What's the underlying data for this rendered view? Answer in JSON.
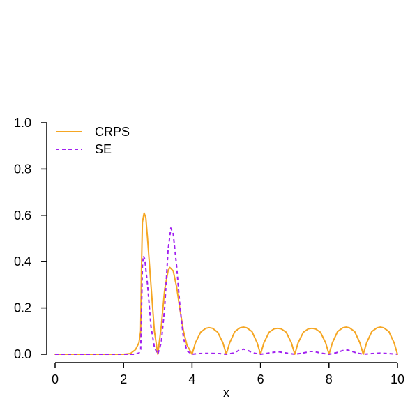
{
  "chart_data": {
    "type": "line",
    "xlabel": "x",
    "ylabel": "",
    "xlim": [
      0,
      10
    ],
    "ylim": [
      0,
      1
    ],
    "x_ticks": [
      0,
      2,
      4,
      6,
      8,
      10
    ],
    "x_tick_labels": [
      "0",
      "2",
      "4",
      "6",
      "8",
      "10"
    ],
    "y_ticks": [
      0,
      0.2,
      0.4,
      0.6,
      0.8,
      1.0
    ],
    "y_tick_labels": [
      "0.0",
      "0.2",
      "0.4",
      "0.6",
      "0.8",
      "1.0"
    ],
    "grid": false,
    "legend_position": "top-left",
    "series": [
      {
        "name": "CRPS",
        "color": "#F5A623",
        "style": "solid",
        "points": [
          [
            0,
            0
          ],
          [
            2,
            0
          ],
          [
            2.2,
            0.003
          ],
          [
            2.35,
            0.02
          ],
          [
            2.45,
            0.05
          ],
          [
            2.5,
            0.1
          ],
          [
            2.52,
            0.35
          ],
          [
            2.55,
            0.57
          ],
          [
            2.6,
            0.61
          ],
          [
            2.65,
            0.59
          ],
          [
            2.7,
            0.5
          ],
          [
            2.8,
            0.3
          ],
          [
            2.9,
            0.1
          ],
          [
            3.0,
            0.0
          ],
          [
            3.1,
            0.12
          ],
          [
            3.2,
            0.28
          ],
          [
            3.3,
            0.36
          ],
          [
            3.35,
            0.375
          ],
          [
            3.45,
            0.36
          ],
          [
            3.55,
            0.29
          ],
          [
            3.65,
            0.19
          ],
          [
            3.75,
            0.1
          ],
          [
            3.85,
            0.04
          ],
          [
            4.0,
            0.0
          ],
          [
            4.1,
            0.05
          ],
          [
            4.25,
            0.095
          ],
          [
            4.4,
            0.112
          ],
          [
            4.5,
            0.115
          ],
          [
            4.6,
            0.112
          ],
          [
            4.75,
            0.095
          ],
          [
            4.9,
            0.05
          ],
          [
            5.0,
            0.0
          ],
          [
            5.1,
            0.05
          ],
          [
            5.25,
            0.098
          ],
          [
            5.4,
            0.114
          ],
          [
            5.5,
            0.117
          ],
          [
            5.6,
            0.114
          ],
          [
            5.75,
            0.098
          ],
          [
            5.9,
            0.05
          ],
          [
            6.0,
            0.0
          ],
          [
            6.1,
            0.05
          ],
          [
            6.25,
            0.095
          ],
          [
            6.4,
            0.11
          ],
          [
            6.5,
            0.112
          ],
          [
            6.6,
            0.11
          ],
          [
            6.75,
            0.095
          ],
          [
            6.9,
            0.05
          ],
          [
            7.0,
            0.0
          ],
          [
            7.1,
            0.05
          ],
          [
            7.25,
            0.095
          ],
          [
            7.4,
            0.11
          ],
          [
            7.5,
            0.112
          ],
          [
            7.6,
            0.11
          ],
          [
            7.75,
            0.095
          ],
          [
            7.9,
            0.05
          ],
          [
            8.0,
            0.0
          ],
          [
            8.1,
            0.05
          ],
          [
            8.25,
            0.098
          ],
          [
            8.4,
            0.114
          ],
          [
            8.5,
            0.117
          ],
          [
            8.6,
            0.114
          ],
          [
            8.75,
            0.098
          ],
          [
            8.9,
            0.05
          ],
          [
            9.0,
            0.0
          ],
          [
            9.1,
            0.05
          ],
          [
            9.25,
            0.098
          ],
          [
            9.4,
            0.114
          ],
          [
            9.5,
            0.117
          ],
          [
            9.6,
            0.114
          ],
          [
            9.75,
            0.098
          ],
          [
            9.9,
            0.05
          ],
          [
            10.0,
            0.0
          ]
        ]
      },
      {
        "name": "SE",
        "color": "#A020F0",
        "style": "dashed",
        "points": [
          [
            0,
            0
          ],
          [
            2.3,
            0
          ],
          [
            2.45,
            0.005
          ],
          [
            2.5,
            0.02
          ],
          [
            2.52,
            0.15
          ],
          [
            2.55,
            0.38
          ],
          [
            2.58,
            0.425
          ],
          [
            2.62,
            0.41
          ],
          [
            2.7,
            0.3
          ],
          [
            2.8,
            0.12
          ],
          [
            2.9,
            0.03
          ],
          [
            3.0,
            0.0
          ],
          [
            3.1,
            0.05
          ],
          [
            3.2,
            0.2
          ],
          [
            3.3,
            0.45
          ],
          [
            3.38,
            0.545
          ],
          [
            3.45,
            0.52
          ],
          [
            3.55,
            0.38
          ],
          [
            3.65,
            0.2
          ],
          [
            3.75,
            0.07
          ],
          [
            3.85,
            0.015
          ],
          [
            4.0,
            0.0
          ],
          [
            4.2,
            0.003
          ],
          [
            4.5,
            0.004
          ],
          [
            4.8,
            0.003
          ],
          [
            5.0,
            0.0
          ],
          [
            5.2,
            0.005
          ],
          [
            5.4,
            0.018
          ],
          [
            5.5,
            0.022
          ],
          [
            5.6,
            0.018
          ],
          [
            5.8,
            0.005
          ],
          [
            6.0,
            0.0
          ],
          [
            6.2,
            0.004
          ],
          [
            6.45,
            0.01
          ],
          [
            6.55,
            0.01
          ],
          [
            6.8,
            0.004
          ],
          [
            7.0,
            0.0
          ],
          [
            7.2,
            0.004
          ],
          [
            7.45,
            0.012
          ],
          [
            7.55,
            0.012
          ],
          [
            7.8,
            0.004
          ],
          [
            8.0,
            0.0
          ],
          [
            8.2,
            0.006
          ],
          [
            8.45,
            0.018
          ],
          [
            8.55,
            0.018
          ],
          [
            8.8,
            0.006
          ],
          [
            9.0,
            0.0
          ],
          [
            9.25,
            0.003
          ],
          [
            9.5,
            0.005
          ],
          [
            9.75,
            0.003
          ],
          [
            10.0,
            0.0
          ]
        ]
      }
    ]
  }
}
